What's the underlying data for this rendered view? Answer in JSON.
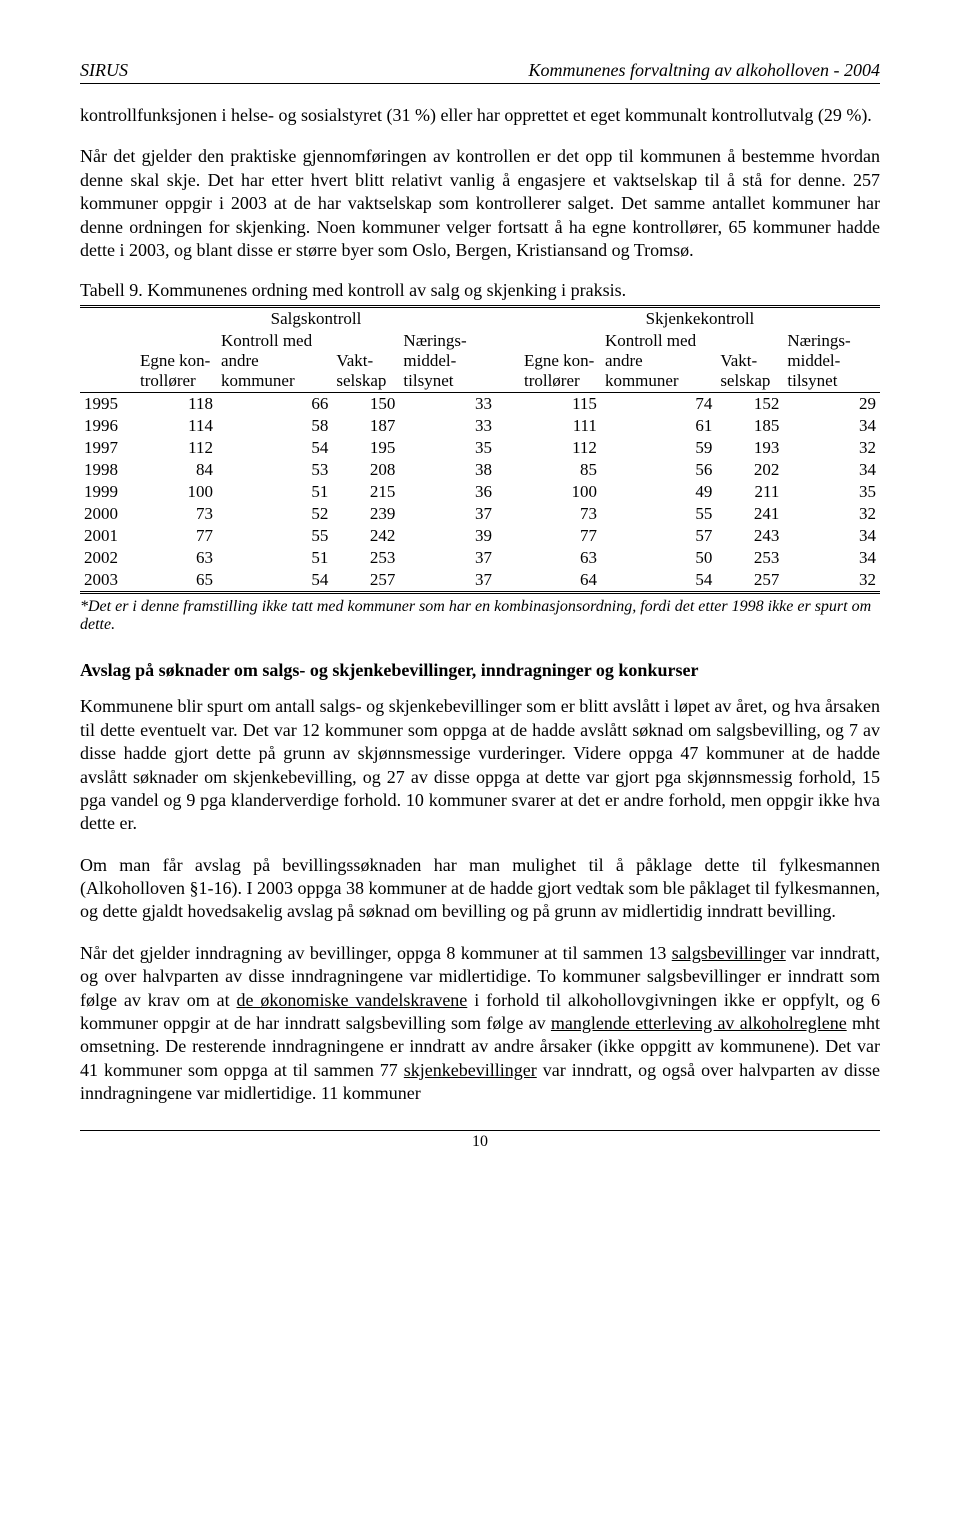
{
  "header": {
    "left": "SIRUS",
    "right": "Kommunenes forvaltning av alkoholloven - 2004"
  },
  "paragraphs": {
    "p1": "kontrollfunksjonen i helse- og sosialstyret (31 %) eller har opprettet et eget kommunalt kontrollutvalg (29 %).",
    "p2": "Når det gjelder den praktiske gjennomføringen av kontrollen er det opp til kommunen å bestemme hvordan denne skal skje. Det har etter hvert blitt relativt vanlig å engasjere et vaktselskap til å stå for denne. 257 kommuner oppgir i 2003 at de har vaktselskap som kontrollerer salget. Det samme antallet kommuner har denne ordningen for skjenking. Noen kommuner velger fortsatt å ha egne kontrollører, 65 kommuner hadde dette i 2003, og blant disse er større byer som Oslo, Bergen, Kristiansand og Tromsø.",
    "table_title": "Tabell 9. Kommunenes ordning med kontroll av salg og skjenking i praksis.",
    "footnote": "*Det er i denne framstilling ikke tatt med kommuner som har en kombinasjonsordning, fordi det etter 1998 ikke er spurt om dette.",
    "section_heading": "Avslag på søknader om salgs- og skjenkebevillinger, inndragninger og konkurser",
    "p3": "Kommunene blir spurt om antall salgs- og skjenkebevillinger som er blitt avslått i løpet av året, og hva årsaken til dette eventuelt var. Det var 12 kommuner som oppga at de hadde avslått søknad om salgsbevilling, og 7 av disse hadde gjort dette på grunn av skjønnsmessige vurderinger. Videre oppga 47 kommuner at de hadde avslått søknader om skjenkebevilling, og 27 av disse oppga at dette var gjort pga skjønnsmessig forhold, 15 pga vandel og 9 pga klanderverdige forhold. 10 kommuner svarer at det er andre forhold, men oppgir ikke hva dette er.",
    "p4": "Om man får avslag på bevillingssøknaden har man mulighet til å påklage dette til fylkesmannen (Alkoholloven §1-16). I 2003 oppga 38 kommuner at de hadde gjort vedtak som ble påklaget til fylkesmannen, og dette gjaldt hovedsakelig avslag på søknad om bevilling og på grunn av midlertidig inndratt bevilling.",
    "p5a": "Når det gjelder inndragning av bevillinger, oppga 8 kommuner at til sammen 13 ",
    "p5_u1": "salgsbevillinger",
    "p5b": " var inndratt, og over halvparten av disse inndragningene var midlertidige. To kommuner salgsbevillinger er inndratt som følge av krav om at ",
    "p5_u2": "de økonomiske vandelskravene",
    "p5c": " i forhold til alkohollovgivningen ikke er oppfylt, og 6 kommuner oppgir at de har inndratt salgsbevilling som følge av ",
    "p5_u3": "manglende etterleving av alkoholreglene",
    "p5d": " mht omsetning. De resterende inndragningene er inndratt av andre årsaker (ikke oppgitt av kommunene). Det var 41 kommuner som oppga at til sammen 77 ",
    "p5_u4": "skjenkebevillinger",
    "p5e": " var inndratt, og også over halvparten av disse inndragningene var midlertidige. 11 kommuner"
  },
  "table": {
    "group_left": "Salgskontroll",
    "group_right": "Skjenkekontroll",
    "col_headers": {
      "egne": "Egne kon-trollører",
      "kontroll": "Kontroll med andre kommuner",
      "vakt": "Vakt-selskap",
      "naering": "Nærings-middel-tilsynet"
    },
    "rows": [
      {
        "year": "1995",
        "l": [
          118,
          66,
          150,
          33
        ],
        "r": [
          115,
          74,
          152,
          29
        ]
      },
      {
        "year": "1996",
        "l": [
          114,
          58,
          187,
          33
        ],
        "r": [
          111,
          61,
          185,
          34
        ]
      },
      {
        "year": "1997",
        "l": [
          112,
          54,
          195,
          35
        ],
        "r": [
          112,
          59,
          193,
          32
        ]
      },
      {
        "year": "1998",
        "l": [
          84,
          53,
          208,
          38
        ],
        "r": [
          85,
          56,
          202,
          34
        ]
      },
      {
        "year": "1999",
        "l": [
          100,
          51,
          215,
          36
        ],
        "r": [
          100,
          49,
          211,
          35
        ]
      },
      {
        "year": "2000",
        "l": [
          73,
          52,
          239,
          37
        ],
        "r": [
          73,
          55,
          241,
          32
        ]
      },
      {
        "year": "2001",
        "l": [
          77,
          55,
          242,
          39
        ],
        "r": [
          77,
          57,
          243,
          34
        ]
      },
      {
        "year": "2002",
        "l": [
          63,
          51,
          253,
          37
        ],
        "r": [
          63,
          50,
          253,
          34
        ]
      },
      {
        "year": "2003",
        "l": [
          65,
          54,
          257,
          37
        ],
        "r": [
          64,
          54,
          257,
          32
        ]
      }
    ]
  },
  "footer": {
    "page": "10"
  }
}
